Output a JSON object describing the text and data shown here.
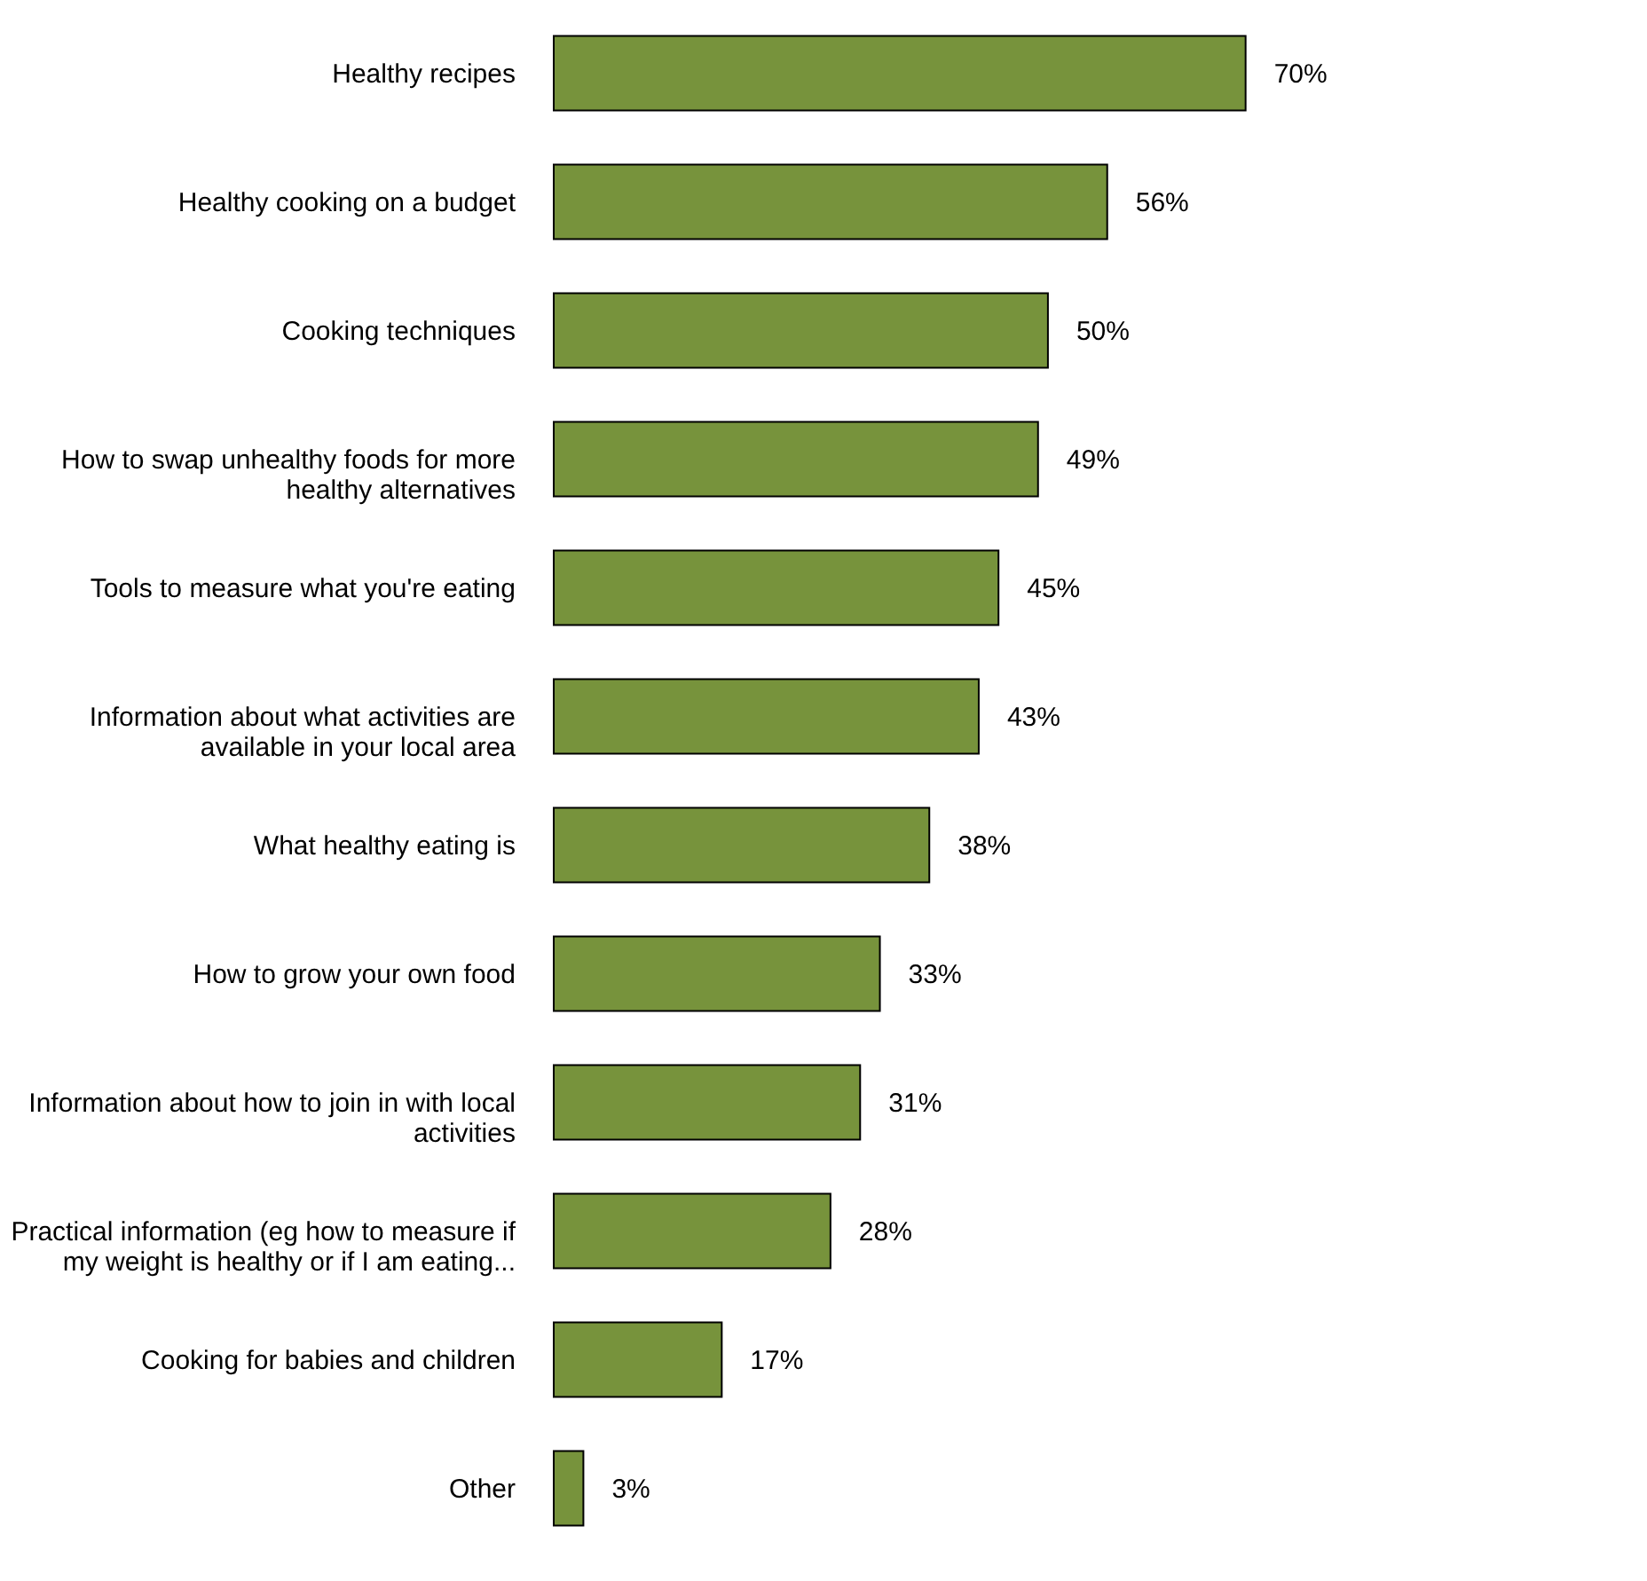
{
  "chart_data": {
    "type": "bar",
    "orientation": "horizontal",
    "categories": [
      "Healthy recipes",
      "Healthy cooking on a budget",
      "Cooking techniques",
      "How to swap unhealthy foods for more\nhealthy alternatives",
      "Tools to measure what you're eating",
      "Information about what activities are\navailable in your local area",
      "What healthy eating is",
      "How to grow your own food",
      "Information about how to join in with local\nactivities",
      "Practical information (eg how to measure if\nmy weight is healthy or if I am eating...",
      "Cooking for babies and children",
      "Other"
    ],
    "values": [
      70,
      56,
      50,
      49,
      45,
      43,
      38,
      33,
      31,
      28,
      17,
      3
    ],
    "value_labels": [
      "70%",
      "56%",
      "50%",
      "49%",
      "45%",
      "43%",
      "38%",
      "33%",
      "31%",
      "28%",
      "17%",
      "3%"
    ],
    "color": "#77933c"
  }
}
